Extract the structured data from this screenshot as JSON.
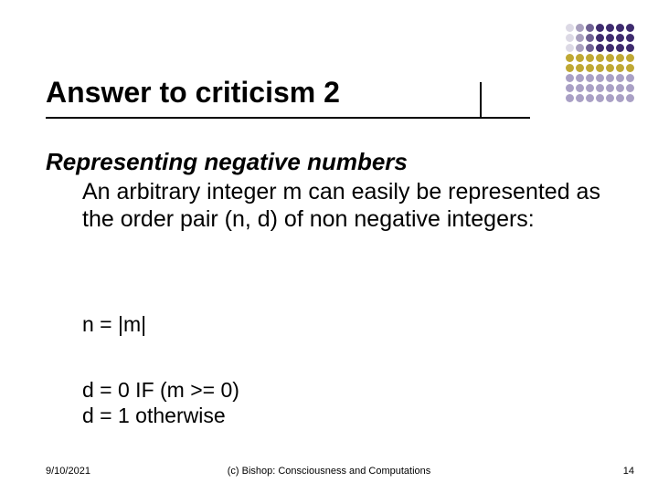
{
  "dots": {
    "cols": 7,
    "color_rows": [
      "#3e2b6f",
      "#3e2b6f",
      "#3e2b6f",
      "#bfa834",
      "#bfa834",
      "#a9a0c5",
      "#a9a0c5",
      "#a9a0c5"
    ],
    "fade_top_rows": 3,
    "fade_opacities": [
      0.18,
      0.45,
      0.75
    ]
  },
  "title": "Answer to criticism 2",
  "subtitle": "Representing negative numbers",
  "body1": "An arbitrary integer m can easily be represented as the order pair (n, d) of non negative integers:",
  "body2": "n = |m|",
  "body3_line1": "d = 0 IF (m >= 0)",
  "body3_line2": "d = 1 otherwise",
  "footer": {
    "date": "9/10/2021",
    "center": "(c) Bishop: Consciousness and Computations",
    "page": "14"
  },
  "colors": {
    "text": "#000000",
    "background": "#ffffff"
  }
}
